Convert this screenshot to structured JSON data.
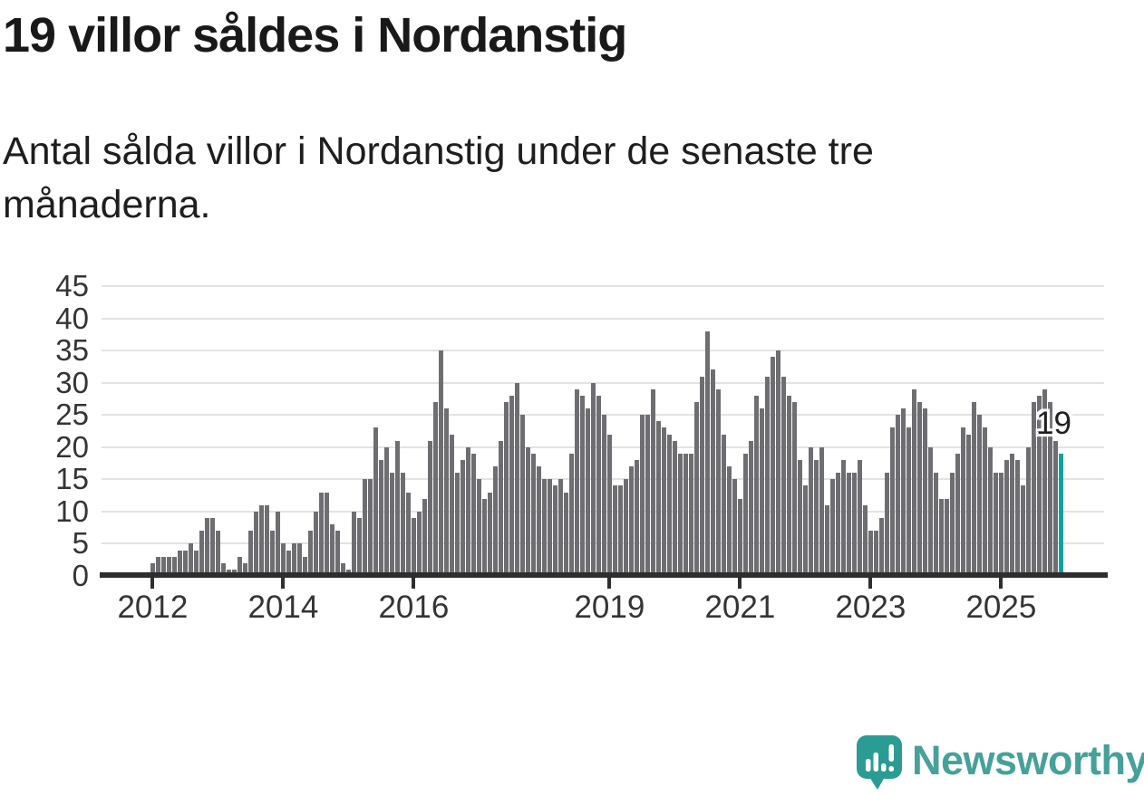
{
  "header": {
    "title": "19 villor såldes i Nordanstig",
    "subtitle": "Antal sålda villor i Nordanstig under de senaste tre månaderna."
  },
  "chart_data": {
    "type": "bar",
    "title": "19 villor såldes i Nordanstig",
    "xlabel": "",
    "ylabel": "",
    "ylim": [
      0,
      45
    ],
    "y_ticks": [
      0,
      5,
      10,
      15,
      20,
      25,
      30,
      35,
      40,
      45
    ],
    "x_tick_years": [
      2012,
      2014,
      2016,
      2019,
      2021,
      2023,
      2025
    ],
    "grid": true,
    "legend": "none",
    "bar_color": "#6e6e72",
    "highlight_color": "#0ca49a",
    "highlight_last_bar": true,
    "last_point_label": "19",
    "series": [
      {
        "year": 2012,
        "values": [
          2,
          3,
          3,
          3,
          3,
          4,
          4,
          5,
          4,
          7,
          9,
          9
        ]
      },
      {
        "year": 2013,
        "values": [
          7,
          2,
          1,
          1,
          3,
          2,
          7,
          10,
          11,
          11,
          7,
          10
        ]
      },
      {
        "year": 2014,
        "values": [
          5,
          4,
          5,
          5,
          3,
          7,
          10,
          13,
          13,
          8,
          7,
          2
        ]
      },
      {
        "year": 2015,
        "values": [
          1,
          10,
          9,
          15,
          15,
          23,
          18,
          20,
          16,
          21,
          16,
          13
        ]
      },
      {
        "year": 2016,
        "values": [
          9,
          10,
          12,
          21,
          27,
          35,
          26,
          22,
          16,
          18,
          20,
          19
        ]
      },
      {
        "year": 2017,
        "values": [
          15,
          12,
          13,
          17,
          21,
          27,
          28,
          30,
          25,
          20,
          19,
          17
        ]
      },
      {
        "year": 2018,
        "values": [
          15,
          15,
          14,
          15,
          13,
          19,
          29,
          28,
          26,
          30,
          28,
          25
        ]
      },
      {
        "year": 2019,
        "values": [
          22,
          14,
          14,
          15,
          17,
          18,
          25,
          25,
          29,
          24,
          23,
          22
        ]
      },
      {
        "year": 2020,
        "values": [
          21,
          19,
          19,
          19,
          27,
          31,
          38,
          32,
          29,
          22,
          17,
          15
        ]
      },
      {
        "year": 2021,
        "values": [
          12,
          19,
          21,
          28,
          26,
          31,
          34,
          35,
          31,
          28,
          27,
          18
        ]
      },
      {
        "year": 2022,
        "values": [
          14,
          20,
          18,
          20,
          11,
          15,
          16,
          18,
          16,
          16,
          18,
          11
        ]
      },
      {
        "year": 2023,
        "values": [
          7,
          7,
          9,
          16,
          23,
          25,
          26,
          23,
          29,
          27,
          26,
          20
        ]
      },
      {
        "year": 2024,
        "values": [
          16,
          12,
          12,
          16,
          19,
          23,
          22,
          27,
          25,
          23,
          20,
          16
        ]
      },
      {
        "year": 2025,
        "values": [
          16,
          18,
          19,
          18,
          14,
          20,
          27,
          28,
          29,
          27,
          21,
          19
        ]
      }
    ]
  },
  "footer": {
    "brand": "Newsworthy",
    "brand_teal": "#2b9c94",
    "wordmark_teal": "#45a19a"
  }
}
